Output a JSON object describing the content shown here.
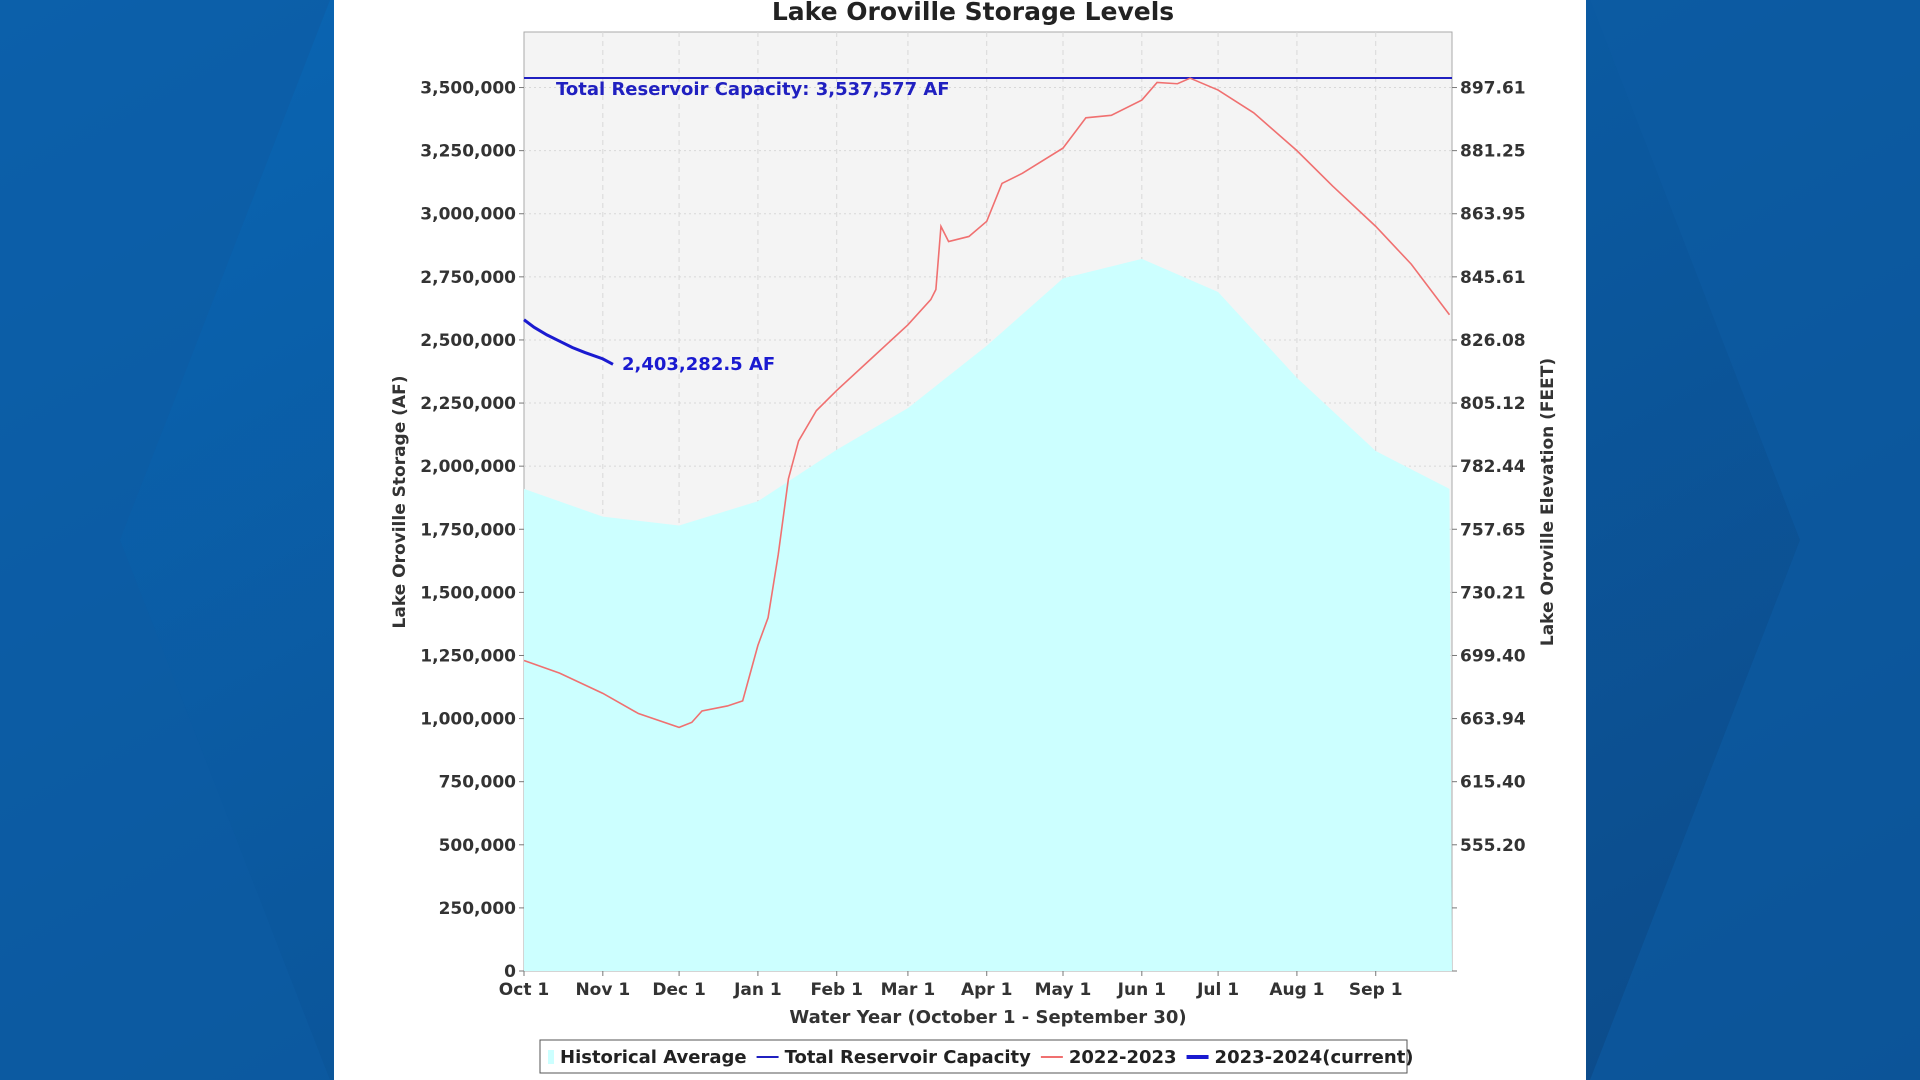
{
  "chart_data": {
    "type": "area",
    "title": "Lake Oroville Storage Levels",
    "xlabel": "Water Year (October 1 - September 30)",
    "ylabel": "Lake Oroville Storage (AF)",
    "y2label": "Lake Oroville Elevation (FEET)",
    "x_tick_labels": [
      "Oct 1",
      "Nov 1",
      "Dec 1",
      "Jan 1",
      "Feb 1",
      "Mar 1",
      "Apr 1",
      "May 1",
      "Jun 1",
      "Jul 1",
      "Aug 1",
      "Sep 1"
    ],
    "y_ticks": [
      0,
      250000,
      500000,
      750000,
      1000000,
      1250000,
      1500000,
      1750000,
      2000000,
      2250000,
      2500000,
      2750000,
      3000000,
      3250000,
      3500000
    ],
    "y_tick_labels": [
      "0",
      "250,000",
      "500,000",
      "750,000",
      "1,000,000",
      "1,250,000",
      "1,500,000",
      "1,750,000",
      "2,000,000",
      "2,250,000",
      "2,500,000",
      "2,750,000",
      "3,000,000",
      "3,250,000",
      "3,500,000"
    ],
    "y2_tick_labels": [
      "",
      "",
      "555.20",
      "615.40",
      "663.94",
      "699.40",
      "730.21",
      "757.65",
      "782.44",
      "805.12",
      "826.08",
      "845.61",
      "863.95",
      "881.25",
      "897.61"
    ],
    "xlim": [
      "10-01",
      "09-30"
    ],
    "ylim": [
      0,
      3720000
    ],
    "grid": true,
    "legend_placement": "bottom",
    "capacity": {
      "value": 3537577,
      "label": "Total Reservoir Capacity: 3,537,577 AF",
      "color": "#2020c0"
    },
    "current_label": "2,403,282.5 AF",
    "series": [
      {
        "name": "Historical Average",
        "style": "area",
        "color": "#ccffff",
        "points": [
          [
            "10-01",
            1910000
          ],
          [
            "11-01",
            1800000
          ],
          [
            "12-01",
            1765000
          ],
          [
            "01-01",
            1861000
          ],
          [
            "02-01",
            2065000
          ],
          [
            "03-01",
            2230000
          ],
          [
            "04-01",
            2477000
          ],
          [
            "05-01",
            2744000
          ],
          [
            "06-01",
            2821000
          ],
          [
            "07-01",
            2690000
          ],
          [
            "08-01",
            2350000
          ],
          [
            "09-01",
            2060000
          ],
          [
            "09-30",
            1910000
          ]
        ]
      },
      {
        "name": "Total Reservoir Capacity",
        "style": "hline",
        "color": "#2020c0"
      },
      {
        "name": "2022-2023",
        "style": "line",
        "color": "#f07070",
        "points": [
          [
            "10-01",
            1230000
          ],
          [
            "10-15",
            1180000
          ],
          [
            "11-01",
            1100000
          ],
          [
            "11-15",
            1020000
          ],
          [
            "12-01",
            965000
          ],
          [
            "12-06",
            985000
          ],
          [
            "12-10",
            1030000
          ],
          [
            "12-20",
            1050000
          ],
          [
            "12-26",
            1070000
          ],
          [
            "12-29",
            1180000
          ],
          [
            "01-01",
            1290000
          ],
          [
            "01-05",
            1400000
          ],
          [
            "01-09",
            1650000
          ],
          [
            "01-13",
            1950000
          ],
          [
            "01-17",
            2100000
          ],
          [
            "01-24",
            2220000
          ],
          [
            "02-01",
            2300000
          ],
          [
            "02-15",
            2430000
          ],
          [
            "03-01",
            2560000
          ],
          [
            "03-10",
            2660000
          ],
          [
            "03-12",
            2700000
          ],
          [
            "03-14",
            2950000
          ],
          [
            "03-17",
            2890000
          ],
          [
            "03-25",
            2910000
          ],
          [
            "04-01",
            2970000
          ],
          [
            "04-07",
            3120000
          ],
          [
            "04-15",
            3160000
          ],
          [
            "05-01",
            3260000
          ],
          [
            "05-10",
            3380000
          ],
          [
            "05-20",
            3390000
          ],
          [
            "06-01",
            3450000
          ],
          [
            "06-07",
            3520000
          ],
          [
            "06-15",
            3515000
          ],
          [
            "06-20",
            3537000
          ],
          [
            "07-01",
            3490000
          ],
          [
            "07-15",
            3400000
          ],
          [
            "08-01",
            3250000
          ],
          [
            "08-15",
            3110000
          ],
          [
            "09-01",
            2950000
          ],
          [
            "09-15",
            2800000
          ],
          [
            "09-30",
            2600000
          ]
        ]
      },
      {
        "name": "2023-2024(current)",
        "style": "line",
        "color": "#1a1ad0",
        "points": [
          [
            "10-01",
            2580000
          ],
          [
            "10-05",
            2550000
          ],
          [
            "10-10",
            2520000
          ],
          [
            "10-15",
            2495000
          ],
          [
            "10-20",
            2470000
          ],
          [
            "10-25",
            2450000
          ],
          [
            "11-01",
            2425000
          ],
          [
            "11-05",
            2403282
          ]
        ]
      }
    ]
  }
}
